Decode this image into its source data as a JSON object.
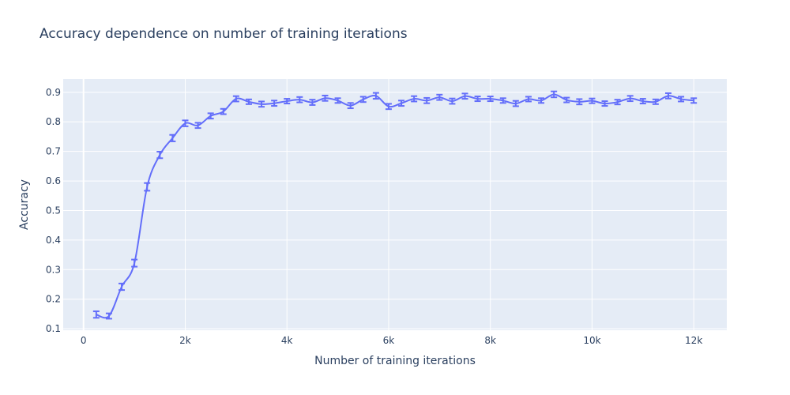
{
  "chart_data": {
    "type": "line",
    "title": "Accuracy dependence on number of training iterations",
    "xlabel": "Number of training iterations",
    "ylabel": "Accuracy",
    "xlim": [
      -400,
      12650
    ],
    "ylim": [
      0.095,
      0.945
    ],
    "x_ticks": [
      0,
      2000,
      4000,
      6000,
      8000,
      10000,
      12000
    ],
    "x_tick_labels": [
      "0",
      "2k",
      "4k",
      "6k",
      "8k",
      "10k",
      "12k"
    ],
    "y_ticks": [
      0.1,
      0.2,
      0.3,
      0.4,
      0.5,
      0.6,
      0.7,
      0.8,
      0.9
    ],
    "y_tick_labels": [
      "0.1",
      "0.2",
      "0.3",
      "0.4",
      "0.5",
      "0.6",
      "0.7",
      "0.8",
      "0.9"
    ],
    "grid": true,
    "line_shape": "spline",
    "series": [
      {
        "color": "#636efa",
        "x": [
          250,
          500,
          750,
          1000,
          1250,
          1500,
          1750,
          2000,
          2250,
          2500,
          2750,
          3000,
          3250,
          3500,
          3750,
          4000,
          4250,
          4500,
          4750,
          5000,
          5250,
          5500,
          5750,
          6000,
          6250,
          6500,
          6750,
          7000,
          7250,
          7500,
          7750,
          8000,
          8250,
          8500,
          8750,
          9000,
          9250,
          9500,
          9750,
          10000,
          10250,
          10500,
          10750,
          11000,
          11250,
          11500,
          11750,
          12000
        ],
        "y": [
          0.148,
          0.143,
          0.242,
          0.322,
          0.58,
          0.688,
          0.745,
          0.795,
          0.788,
          0.82,
          0.835,
          0.878,
          0.868,
          0.86,
          0.863,
          0.87,
          0.875,
          0.866,
          0.88,
          0.872,
          0.855,
          0.876,
          0.888,
          0.852,
          0.863,
          0.878,
          0.872,
          0.883,
          0.87,
          0.887,
          0.878,
          0.878,
          0.872,
          0.862,
          0.877,
          0.872,
          0.893,
          0.874,
          0.868,
          0.871,
          0.862,
          0.867,
          0.879,
          0.87,
          0.868,
          0.888,
          0.877,
          0.872
        ],
        "error": [
          0.011,
          0.009,
          0.011,
          0.012,
          0.013,
          0.011,
          0.011,
          0.01,
          0.009,
          0.009,
          0.009,
          0.009,
          0.008,
          0.009,
          0.009,
          0.008,
          0.009,
          0.009,
          0.009,
          0.008,
          0.009,
          0.009,
          0.01,
          0.009,
          0.009,
          0.009,
          0.009,
          0.009,
          0.009,
          0.009,
          0.008,
          0.008,
          0.008,
          0.009,
          0.008,
          0.008,
          0.01,
          0.008,
          0.009,
          0.008,
          0.008,
          0.008,
          0.009,
          0.008,
          0.008,
          0.009,
          0.008,
          0.008
        ]
      }
    ]
  }
}
